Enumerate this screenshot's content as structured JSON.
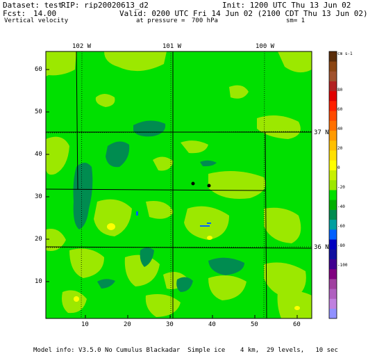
{
  "header": {
    "dataset_label": "Dataset: test",
    "rip_label": "RIP: rip20020613_d2",
    "init_label": "Init: 1200 UTC Thu 13 Jun 02",
    "fcst_label": "Fcst:",
    "fcst_value": "14.00",
    "valid_label": "Valid: 0200 UTC Fri 14 Jun 02 (2100 CDT Thu 13 Jun 02)",
    "field_label": "Vertical velocity",
    "pressure_label": "at pressure =",
    "pressure_value": "700 hPa",
    "smoothing_label": "sm= 1"
  },
  "map": {
    "longitude_labels": [
      "102 W",
      "101 W",
      "100 W"
    ],
    "latitude_labels": [
      "37 N",
      "36 N"
    ],
    "x_ticks": [
      "10",
      "20",
      "30",
      "40",
      "50",
      "60"
    ],
    "y_ticks": [
      "10",
      "20",
      "30",
      "40",
      "50",
      "60"
    ],
    "colors": {
      "background": "#00e000",
      "light": "#9ce800",
      "yellow": "#ffff00",
      "dark": "#008c50"
    }
  },
  "colorbar": {
    "unit_label": "cm s-1",
    "labels": [
      "80",
      "60",
      "40",
      "20",
      "0",
      "-20",
      "-40",
      "-60",
      "-80",
      "-100"
    ],
    "colors": [
      "#5a2d0a",
      "#8b4513",
      "#a0522d",
      "#b22222",
      "#e00000",
      "#ff2000",
      "#ff4a00",
      "#ff7000",
      "#ff9a00",
      "#ffc000",
      "#ffe000",
      "#ffff00",
      "#c8f000",
      "#9ce800",
      "#00e000",
      "#00b000",
      "#008c50",
      "#00a0a0",
      "#0060ff",
      "#0000c0",
      "#1010a0",
      "#400090",
      "#800080",
      "#a040a0",
      "#b060c0",
      "#c080e0",
      "#9090ff"
    ]
  },
  "footer": {
    "model_info": "Model info: V3.5.0 No Cumulus Blackadar  Simple ice    4 km,  29 levels,   10 sec"
  }
}
